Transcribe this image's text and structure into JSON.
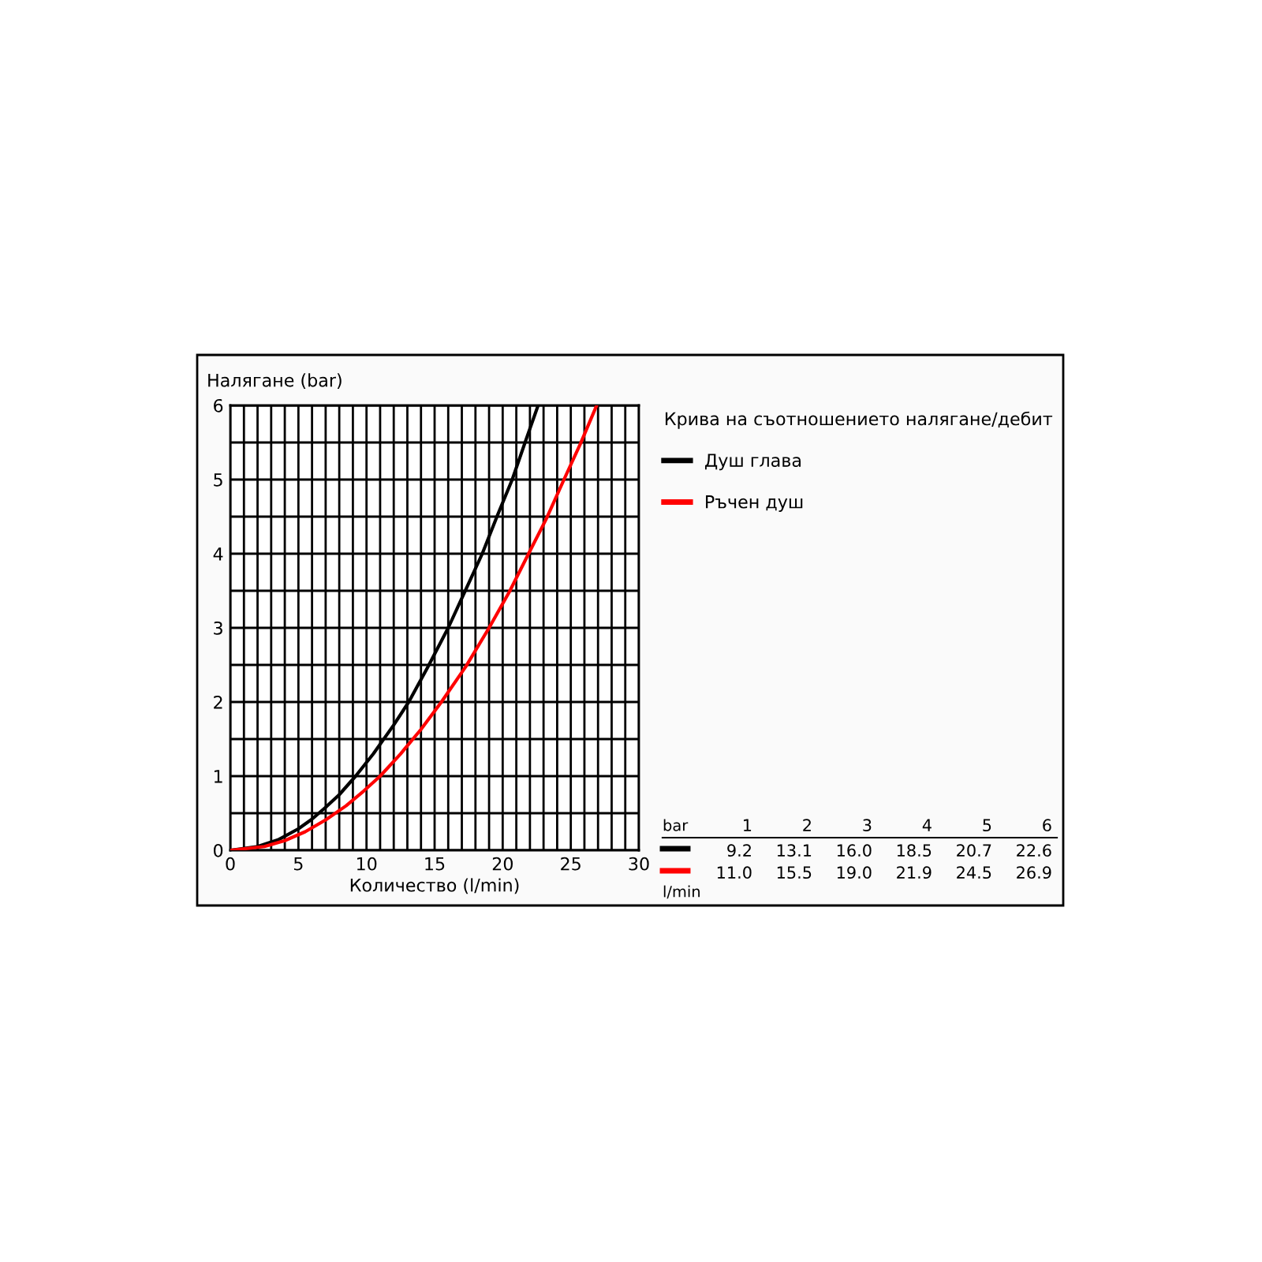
{
  "chart_data": {
    "type": "line",
    "ylabel": "Налягане (bar)",
    "xlabel": "Количество (l/min)",
    "legend_title": "Крива на съотношението налягане/дебит",
    "xlim": [
      0,
      30
    ],
    "ylim": [
      0,
      6
    ],
    "xticks": [
      0,
      {
        "value": 1,
        "label": null
      },
      {
        "value": 2,
        "label": null
      },
      {
        "value": 3,
        "label": null
      },
      {
        "value": 4,
        "label": null
      },
      5,
      {
        "value": 6,
        "label": null
      },
      {
        "value": 7,
        "label": null
      },
      {
        "value": 8,
        "label": null
      },
      {
        "value": 9,
        "label": null
      },
      10,
      {
        "value": 11,
        "label": null
      },
      {
        "value": 12,
        "label": null
      },
      {
        "value": 13,
        "label": null
      },
      {
        "value": 14,
        "label": null
      },
      15,
      {
        "value": 16,
        "label": null
      },
      {
        "value": 17,
        "label": null
      },
      {
        "value": 18,
        "label": null
      },
      {
        "value": 19,
        "label": null
      },
      20,
      {
        "value": 21,
        "label": null
      },
      {
        "value": 22,
        "label": null
      },
      {
        "value": 23,
        "label": null
      },
      {
        "value": 24,
        "label": null
      },
      25,
      {
        "value": 26,
        "label": null
      },
      {
        "value": 27,
        "label": null
      },
      {
        "value": 28,
        "label": null
      },
      {
        "value": 29,
        "label": null
      },
      30
    ],
    "yticks": [
      0,
      {
        "value": 0.5,
        "label": null
      },
      1,
      {
        "value": 1.5,
        "label": null
      },
      2,
      {
        "value": 2.5,
        "label": null
      },
      3,
      {
        "value": 3.5,
        "label": null
      },
      4,
      {
        "value": 4.5,
        "label": null
      },
      5,
      {
        "value": 5.5,
        "label": null
      },
      6
    ],
    "grid": true,
    "legend": "right",
    "marker": "none",
    "line_style": "solid",
    "annotations": [
      "bar",
      "1",
      "2",
      "3",
      "4",
      "5",
      "6",
      "9.2",
      "13.1",
      "16.0",
      "18.5",
      "20.7",
      "22.6",
      "11.0",
      "15.5",
      "19.0",
      "21.9",
      "24.5",
      "26.9",
      "l/min"
    ],
    "series": [
      {
        "name": "Душ глава",
        "color": "#000000",
        "x": [
          0,
          2,
          3.5,
          5,
          6,
          7,
          8,
          9.2,
          10.5,
          12,
          13.1,
          14.5,
          16.0,
          17.3,
          18.5,
          19.6,
          20.7,
          21.7,
          22.6
        ],
        "values": [
          0,
          0.05,
          0.14,
          0.29,
          0.42,
          0.58,
          0.75,
          1,
          1.3,
          1.69,
          2,
          2.47,
          3,
          3.52,
          4,
          4.51,
          5,
          5.53,
          6
        ]
      },
      {
        "name": "Ръчен душ",
        "color": "#ff0000",
        "x": [
          0,
          2.5,
          4,
          5.5,
          7,
          8.5,
          9.8,
          11.0,
          12.5,
          14,
          15.5,
          17.3,
          19.0,
          20.5,
          21.9,
          23.2,
          24.5,
          25.7,
          26.9
        ],
        "values": [
          0,
          0.05,
          0.13,
          0.25,
          0.41,
          0.6,
          0.8,
          1,
          1.3,
          1.63,
          2,
          2.48,
          3,
          3.49,
          4,
          4.47,
          5,
          5.48,
          6
        ]
      }
    ]
  }
}
